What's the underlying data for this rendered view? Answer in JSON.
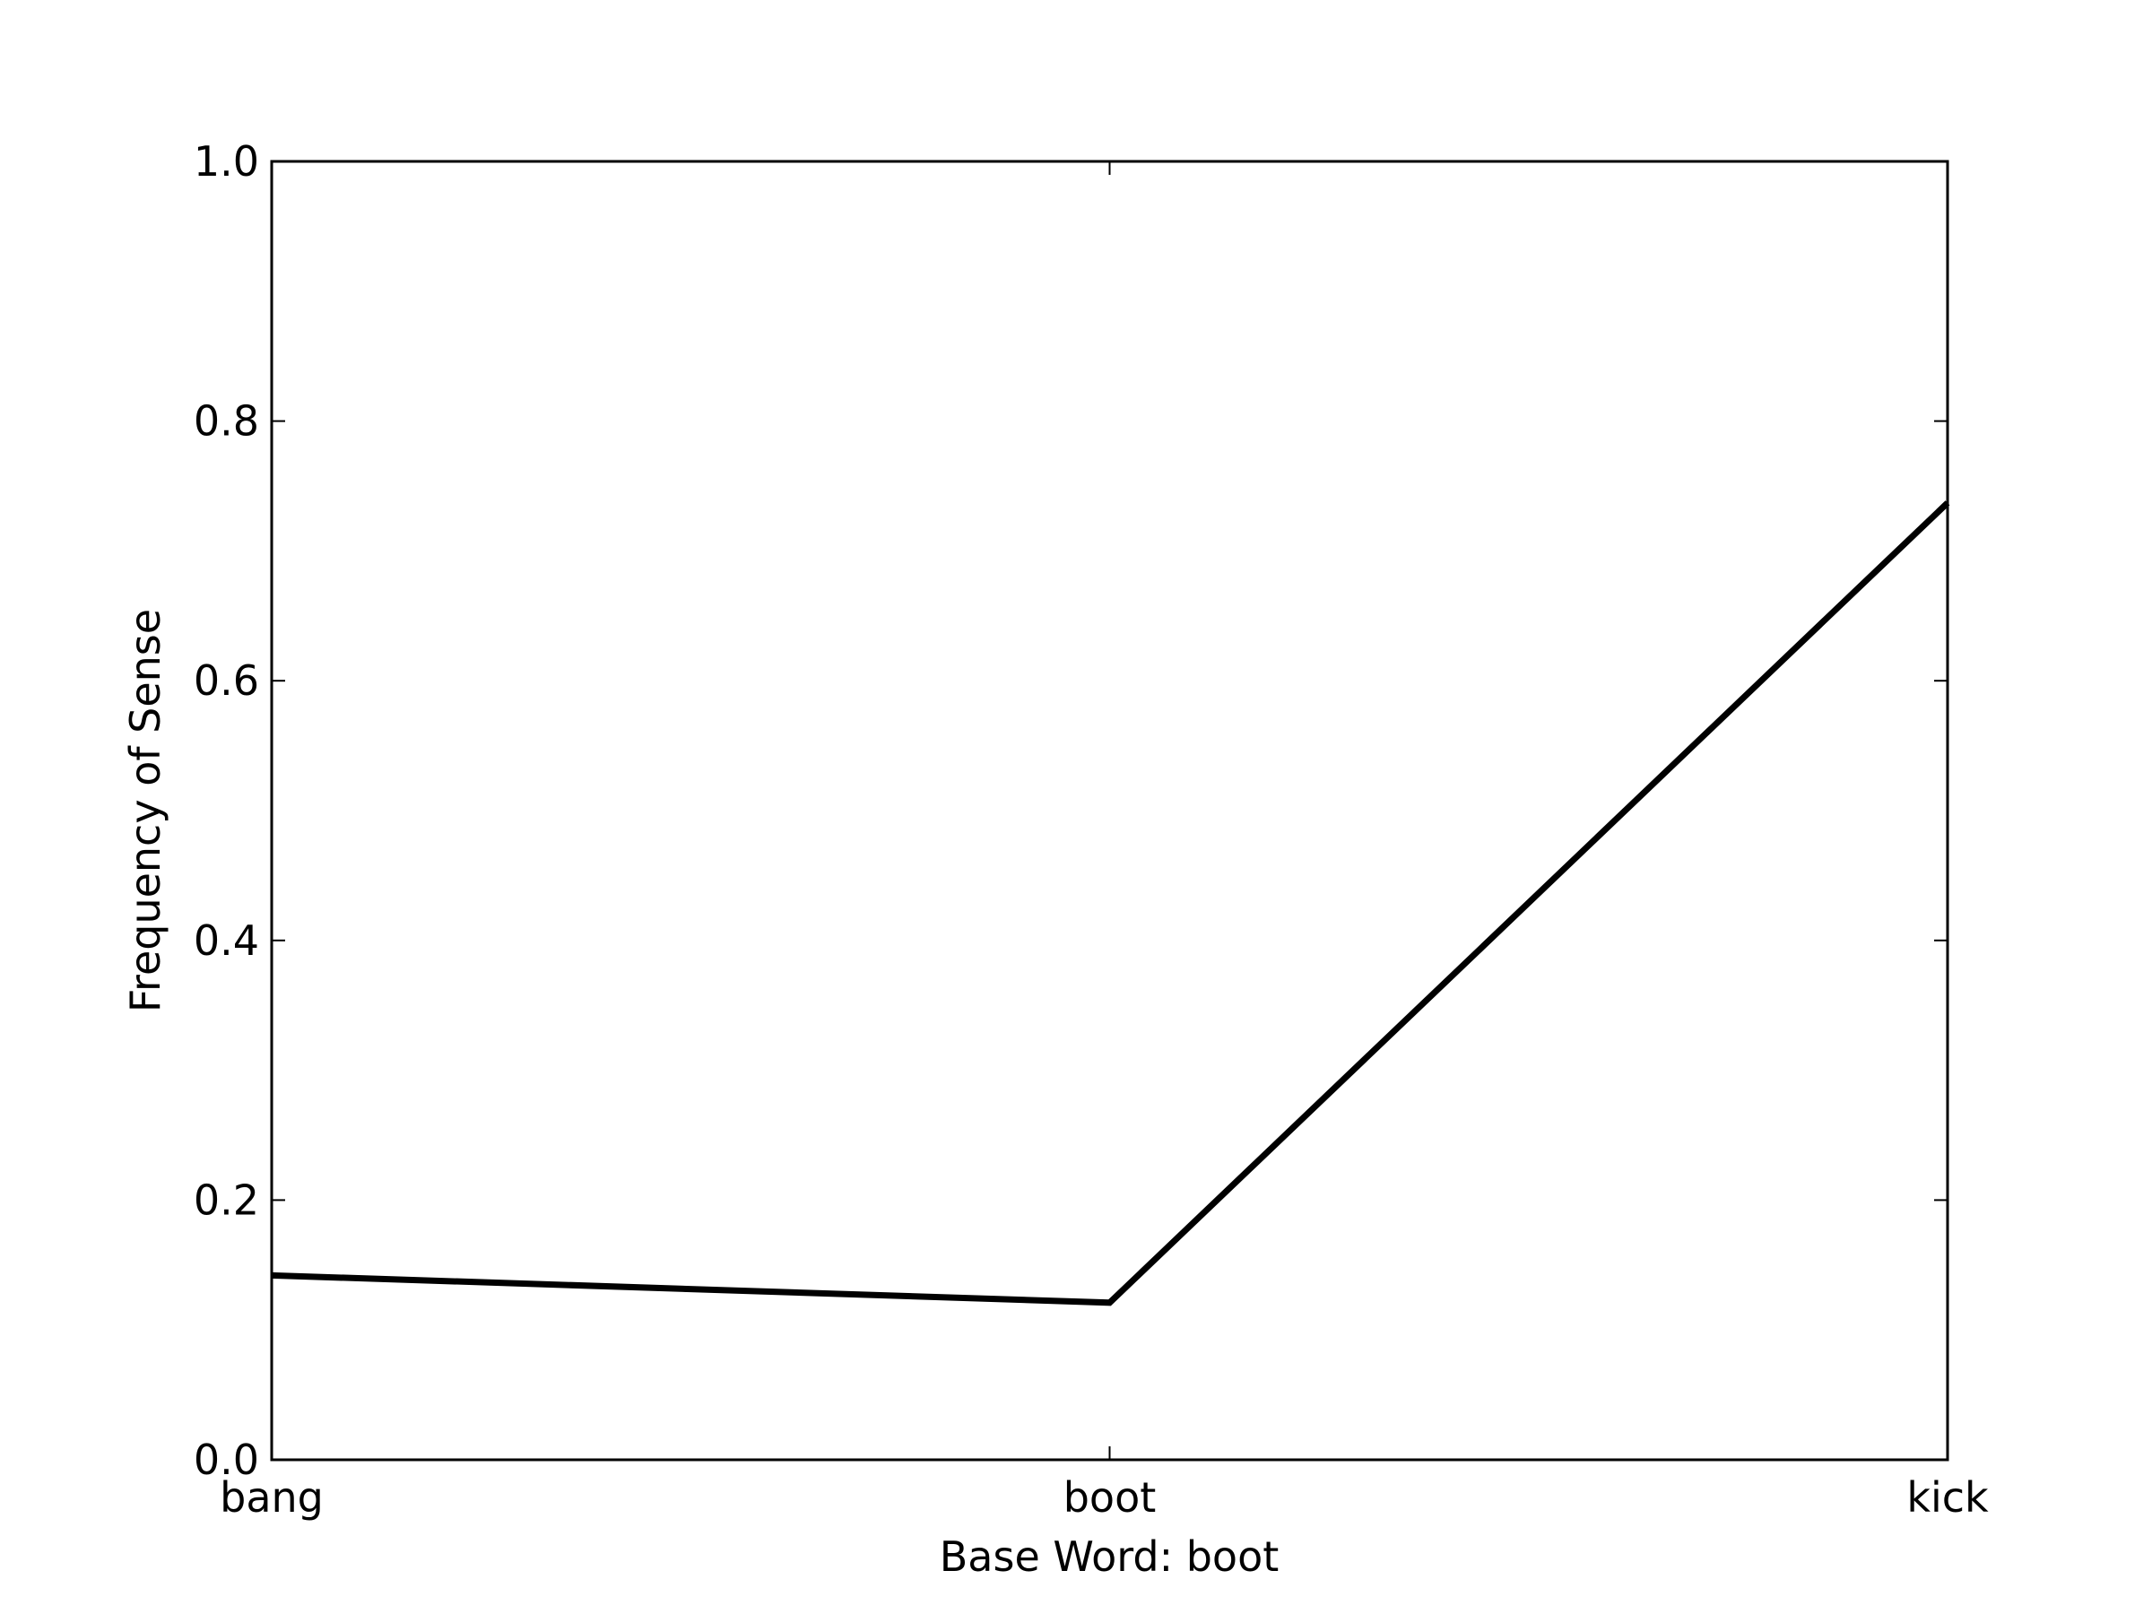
{
  "chart_data": {
    "type": "line",
    "title": "",
    "xlabel": "Base Word: boot",
    "ylabel": "Frequency of Sense",
    "categories": [
      "bang",
      "boot",
      "kick"
    ],
    "series": [
      {
        "values": [
          0.142,
          0.121,
          0.737
        ]
      }
    ],
    "ylim": [
      0,
      1.0
    ],
    "yticks": [
      "0.0",
      "0.2",
      "0.4",
      "0.6",
      "0.8",
      "1.0"
    ],
    "ytick_values": [
      0.0,
      0.2,
      0.4,
      0.6,
      0.8,
      1.0
    ],
    "grid": false,
    "legend": "none",
    "colors": {
      "line": "#000000",
      "axes": "#000000",
      "background": "#ffffff"
    }
  }
}
